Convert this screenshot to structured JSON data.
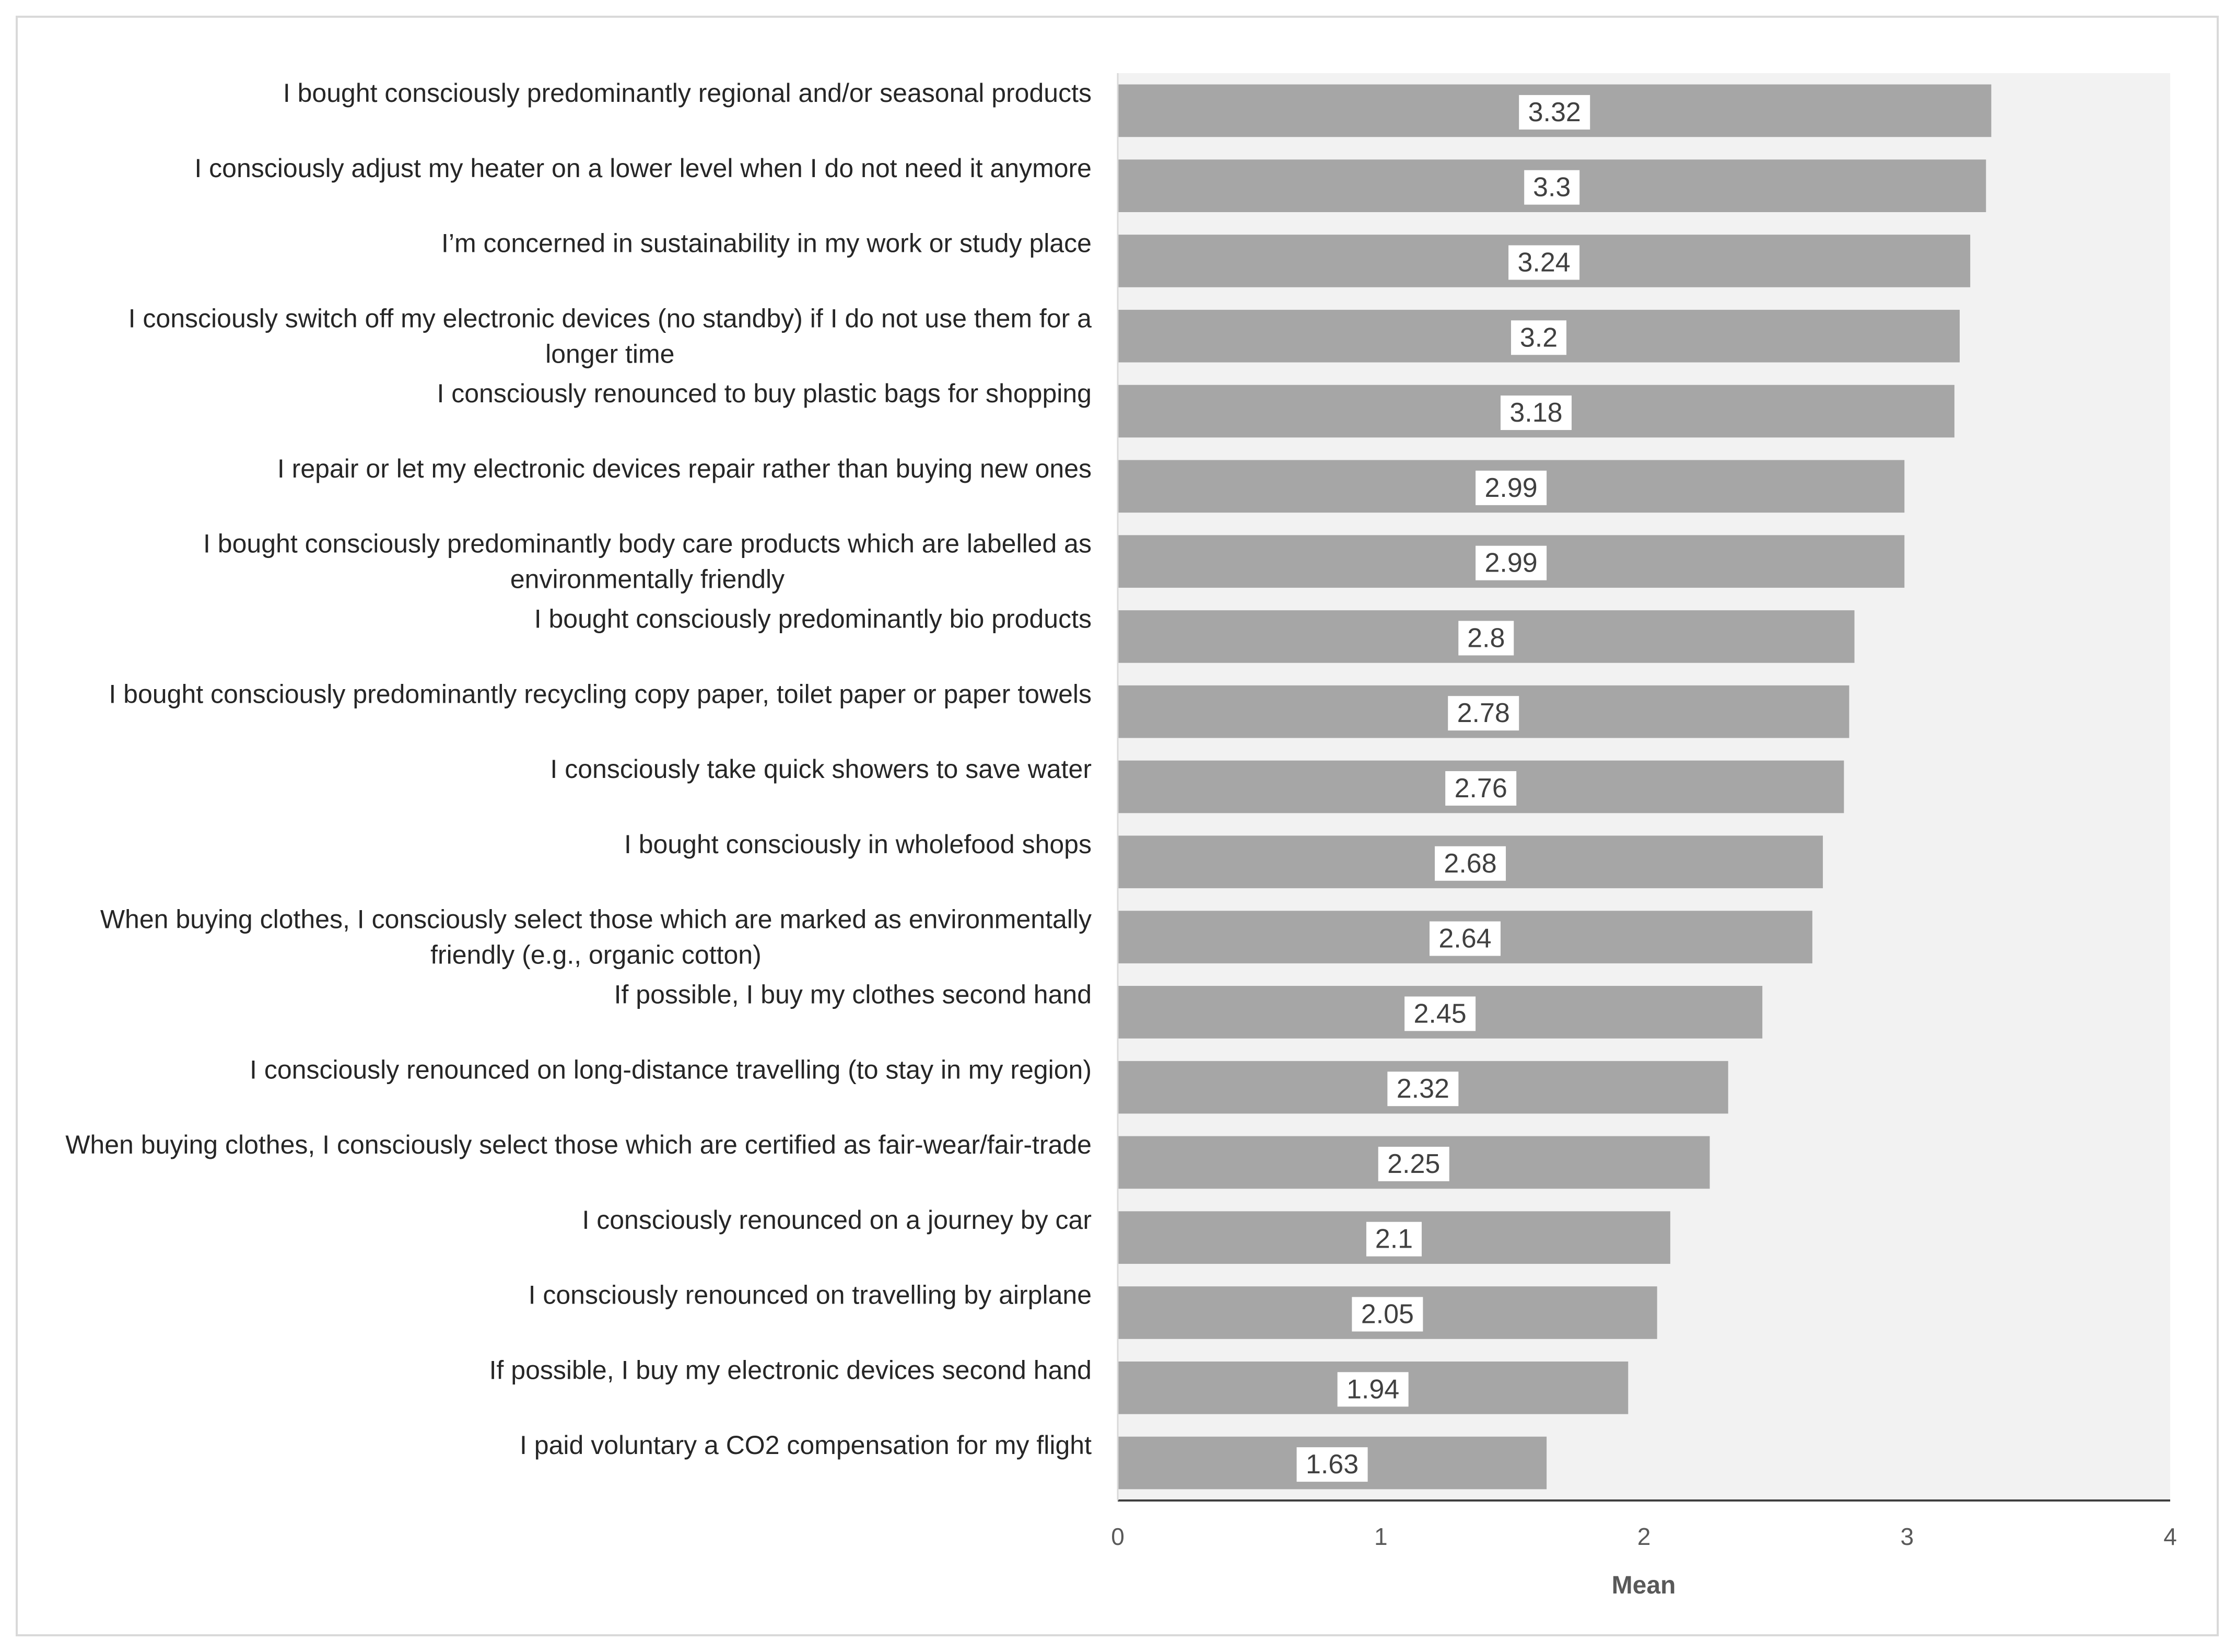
{
  "chart_data": {
    "type": "bar",
    "orientation": "horizontal",
    "title": "",
    "xlabel": "Mean",
    "ylabel": "",
    "xlim": [
      0,
      4
    ],
    "xticks": [
      0,
      1,
      2,
      3,
      4
    ],
    "bar_color": "#a6a6a6",
    "plot_background": "#f2f2f2",
    "categories": [
      "I bought consciously predominantly regional and/or seasonal products",
      "I consciously adjust my heater on a lower level when I do not need it anymore",
      "I’m concerned in sustainability in my work or study place",
      "I consciously switch off my electronic devices (no standby) if I do not use them for a longer time",
      "I consciously renounced to buy plastic bags for shopping",
      "I repair or let my electronic devices repair rather than buying new ones",
      "I bought consciously predominantly body care products which are labelled as environmentally friendly",
      "I bought consciously predominantly bio products",
      "I bought consciously predominantly recycling copy paper, toilet paper or paper towels",
      "I consciously take quick showers to save water",
      "I bought consciously in wholefood shops",
      "When buying clothes, I consciously select those which are marked as environmentally friendly (e.g., organic cotton)",
      "If possible, I buy my clothes second hand",
      "I consciously renounced on long-distance travelling (to stay in my region)",
      "When buying clothes, I consciously select those which are certified as fair-wear/fair-trade",
      "I consciously renounced on a journey by car",
      "I consciously renounced on travelling by airplane",
      "If possible, I buy my electronic devices second hand",
      "I paid voluntary a CO2 compensation for my flight"
    ],
    "label_lines": [
      [
        "I bought consciously predominantly regional and/or seasonal products"
      ],
      [
        "I consciously adjust my heater on a lower level when I do not need it anymore"
      ],
      [
        "I’m concerned in sustainability in my work or study place"
      ],
      [
        "I consciously switch off my electronic devices (no standby) if I do not use them for a",
        "longer time"
      ],
      [
        "I consciously renounced to buy plastic bags for shopping"
      ],
      [
        "I repair or let my electronic devices repair rather than buying new ones"
      ],
      [
        "I bought consciously predominantly body care products which are labelled as",
        "environmentally friendly"
      ],
      [
        "I bought consciously predominantly bio products"
      ],
      [
        "I bought consciously predominantly recycling copy paper, toilet paper or paper towels"
      ],
      [
        "I consciously take quick showers to save water"
      ],
      [
        "I bought consciously in wholefood shops"
      ],
      [
        "When buying clothes, I consciously select those which are marked as environmentally",
        "friendly (e.g., organic cotton)"
      ],
      [
        "If possible, I buy my clothes second hand"
      ],
      [
        "I consciously renounced on long-distance travelling (to stay in my region)"
      ],
      [
        "When buying clothes, I consciously select those which are certified as fair-wear/fair-trade"
      ],
      [
        "I consciously renounced on a journey by car"
      ],
      [
        "I consciously renounced on travelling by airplane"
      ],
      [
        "If possible, I buy my electronic devices second hand"
      ],
      [
        "I paid voluntary a CO2 compensation for my flight"
      ]
    ],
    "values": [
      3.32,
      3.3,
      3.24,
      3.2,
      3.18,
      2.99,
      2.99,
      2.8,
      2.78,
      2.76,
      2.68,
      2.64,
      2.45,
      2.32,
      2.25,
      2.1,
      2.05,
      1.94,
      1.63
    ],
    "value_labels": [
      "3.32",
      "3.3",
      "3.24",
      "3.2",
      "3.18",
      "2.99",
      "2.99",
      "2.8",
      "2.78",
      "2.76",
      "2.68",
      "2.64",
      "2.45",
      "2.32",
      "2.25",
      "2.1",
      "2.05",
      "1.94",
      "1.63"
    ],
    "legend": "none",
    "grid": false
  }
}
